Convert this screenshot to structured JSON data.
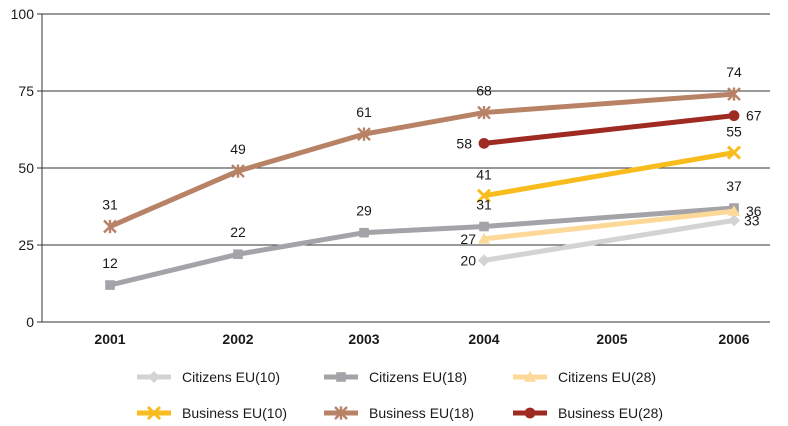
{
  "chart_data": {
    "type": "line",
    "title": "",
    "xlabel": "",
    "ylabel": "",
    "categories": [
      "2001",
      "2002",
      "2003",
      "2004",
      "2005",
      "2006"
    ],
    "yticks": [
      "0",
      "25",
      "50",
      "75",
      "100"
    ],
    "ylim": [
      0,
      100
    ],
    "grid": "horizontal",
    "legend_position": "bottom",
    "series": [
      {
        "name": "Citizens EU(10)",
        "color": "#d3d3d3",
        "marker": "diamond",
        "values": [
          null,
          null,
          null,
          20,
          null,
          33
        ],
        "labels": [
          "",
          "",
          "",
          "20",
          "",
          "33"
        ]
      },
      {
        "name": "Citizens EU(18)",
        "color": "#a3a3a8",
        "marker": "square",
        "values": [
          12,
          22,
          29,
          31,
          null,
          37
        ],
        "labels": [
          "12",
          "22",
          "29",
          "31",
          "",
          "37"
        ]
      },
      {
        "name": "Citizens EU(28)",
        "color": "#fcd998",
        "marker": "triangle",
        "values": [
          null,
          null,
          null,
          27,
          null,
          36
        ],
        "labels": [
          "",
          "",
          "",
          "27",
          "",
          "36"
        ]
      },
      {
        "name": "Business EU(10)",
        "color": "#f8bc1e",
        "marker": "x",
        "values": [
          null,
          null,
          null,
          41,
          null,
          55
        ],
        "labels": [
          "",
          "",
          "",
          "41",
          "",
          "55"
        ]
      },
      {
        "name": "Business EU(18)",
        "color": "#b88266",
        "marker": "star",
        "values": [
          31,
          49,
          61,
          68,
          null,
          74
        ],
        "labels": [
          "31",
          "49",
          "61",
          "68",
          "",
          "74"
        ]
      },
      {
        "name": "Business EU(28)",
        "color": "#9e2a22",
        "marker": "circle",
        "values": [
          null,
          null,
          null,
          58,
          null,
          67
        ],
        "labels": [
          "",
          "",
          "",
          "58",
          "",
          "67"
        ]
      }
    ]
  }
}
